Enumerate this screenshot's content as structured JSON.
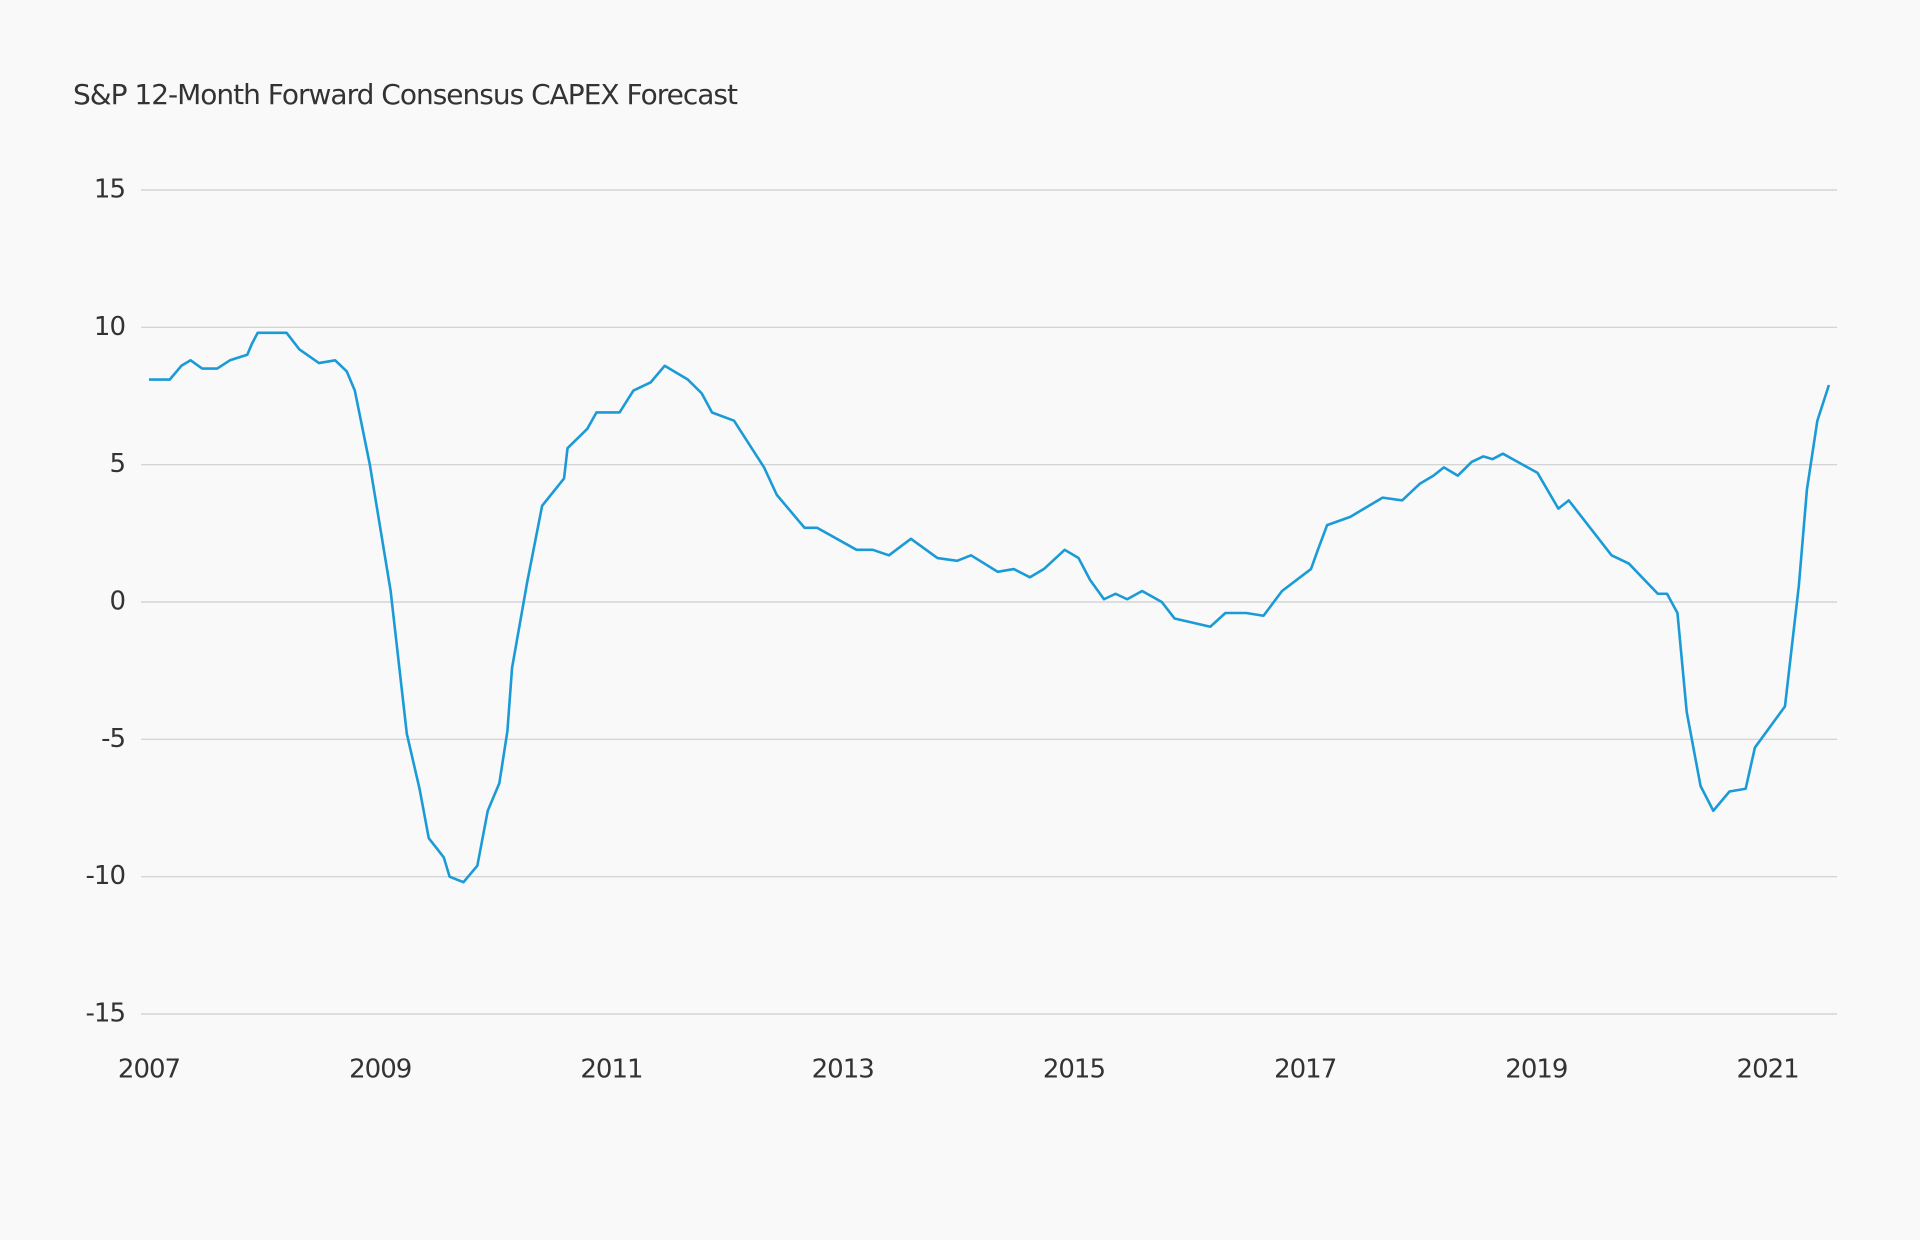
{
  "chart_data": {
    "type": "line",
    "title": "S&P 12-Month Forward Consensus CAPEX Forecast",
    "x": [
      2007.0,
      2007.18,
      2007.28,
      2007.36,
      2007.46,
      2007.59,
      2007.7,
      2007.85,
      2007.89,
      2007.94,
      2008.08,
      2008.19,
      2008.3,
      2008.47,
      2008.61,
      2008.71,
      2008.78,
      2008.91,
      2009.09,
      2009.23,
      2009.34,
      2009.42,
      2009.55,
      2009.6,
      2009.72,
      2009.84,
      2009.93,
      2010.03,
      2010.1,
      2010.14,
      2010.27,
      2010.4,
      2010.59,
      2010.62,
      2010.79,
      2010.87,
      2011.07,
      2011.19,
      2011.34,
      2011.46,
      2011.66,
      2011.78,
      2011.87,
      2012.06,
      2012.32,
      2012.43,
      2012.67,
      2012.78,
      2013.12,
      2013.26,
      2013.4,
      2013.59,
      2013.82,
      2013.99,
      2014.11,
      2014.34,
      2014.48,
      2014.62,
      2014.74,
      2014.92,
      2015.04,
      2015.14,
      2015.26,
      2015.36,
      2015.46,
      2015.59,
      2015.76,
      2015.87,
      2016.18,
      2016.31,
      2016.49,
      2016.64,
      2016.8,
      2017.05,
      2017.11,
      2017.19,
      2017.39,
      2017.67,
      2017.84,
      2017.99,
      2018.11,
      2018.2,
      2018.32,
      2018.44,
      2018.54,
      2018.62,
      2018.71,
      2019.01,
      2019.19,
      2019.28,
      2019.65,
      2019.8,
      2020.05,
      2020.13,
      2020.22,
      2020.3,
      2020.42,
      2020.53,
      2020.67,
      2020.81,
      2020.89,
      2021.15,
      2021.27,
      2021.34,
      2021.43,
      2021.53
    ],
    "values": [
      8.1,
      8.1,
      8.6,
      8.8,
      8.5,
      8.5,
      8.8,
      9.0,
      9.4,
      9.8,
      9.8,
      9.8,
      9.2,
      8.7,
      8.8,
      8.4,
      7.7,
      5.0,
      0.4,
      -4.8,
      -6.8,
      -8.6,
      -9.3,
      -10.0,
      -10.2,
      -9.6,
      -7.6,
      -6.6,
      -4.7,
      -2.4,
      0.7,
      3.5,
      4.5,
      5.6,
      6.3,
      6.9,
      6.9,
      7.7,
      8.0,
      8.6,
      8.1,
      7.6,
      6.9,
      6.6,
      4.9,
      3.9,
      2.7,
      2.7,
      1.9,
      1.9,
      1.7,
      2.3,
      1.6,
      1.5,
      1.7,
      1.1,
      1.2,
      0.9,
      1.2,
      1.9,
      1.6,
      0.8,
      0.1,
      0.3,
      0.1,
      0.4,
      0.0,
      -0.6,
      -0.9,
      -0.4,
      -0.4,
      -0.5,
      0.4,
      1.2,
      1.9,
      2.8,
      3.1,
      3.8,
      3.7,
      4.3,
      4.6,
      4.9,
      4.6,
      5.1,
      5.3,
      5.2,
      5.4,
      4.7,
      3.4,
      3.7,
      1.7,
      1.4,
      0.3,
      0.3,
      -0.4,
      -4.0,
      -6.7,
      -7.6,
      -6.9,
      -6.8,
      -5.3,
      -3.8,
      0.6,
      4.1,
      6.6,
      7.9
    ],
    "color": "#1a9bd7",
    "xlim": [
      2007,
      2021.6
    ],
    "xticks": [
      2007,
      2009,
      2011,
      2013,
      2015,
      2017,
      2019,
      2021
    ],
    "ylim": [
      -15,
      15
    ],
    "yticks": [
      -15,
      -10,
      -5,
      0,
      5,
      10,
      15
    ],
    "grid": true
  }
}
